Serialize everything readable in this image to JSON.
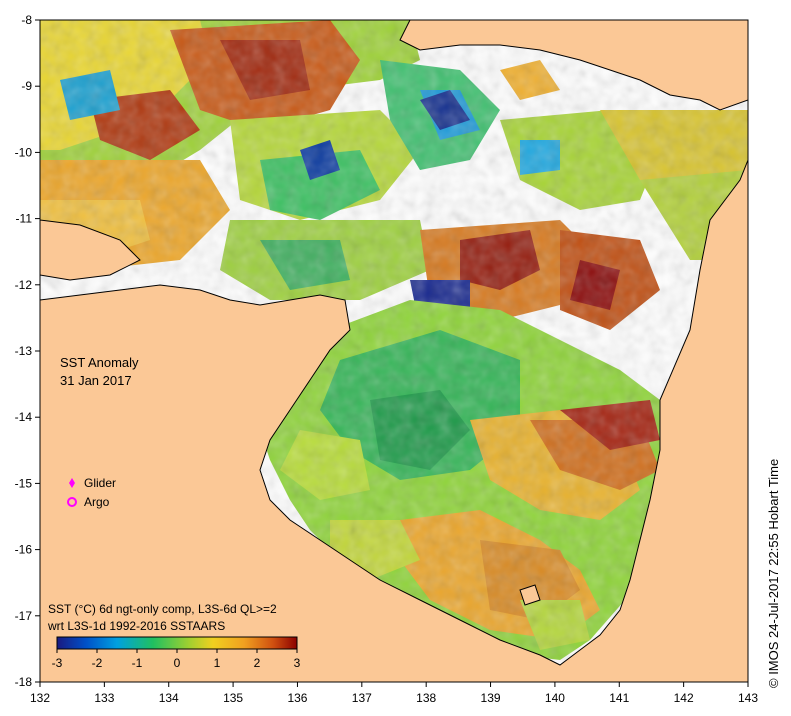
{
  "map": {
    "title": "SST Anomaly",
    "date": "31 Jan 2017",
    "x_ticks": [
      "132",
      "133",
      "134",
      "135",
      "136",
      "137",
      "138",
      "139",
      "140",
      "141",
      "142",
      "143"
    ],
    "y_ticks": [
      "-8",
      "-9",
      "-10",
      "-11",
      "-12",
      "-13",
      "-14",
      "-15",
      "-16",
      "-17",
      "-18"
    ],
    "legend": {
      "glider_label": "Glider",
      "argo_label": "Argo",
      "glider_color": "#ff00ff",
      "argo_color": "#ff00ff"
    },
    "product_line1": "SST (°C) 6d ngt-only comp, L3S-6d QL>=2",
    "product_line2": "wrt L3S-1d 1992-2016 SSTAARS",
    "colorbar": {
      "ticks": [
        "-3",
        "-2",
        "-1",
        "0",
        "1",
        "2",
        "3"
      ],
      "colors": [
        "#1a1a80",
        "#0050c8",
        "#00a0e0",
        "#20c060",
        "#a0d030",
        "#f0d020",
        "#f0a020",
        "#d05010",
        "#8b0000"
      ]
    },
    "credit": "© IMOS 24-Jul-2017 22:55 Hobart Time",
    "colors": {
      "land": "#fbc896",
      "nodata": "#ffffff",
      "coast": "#000000"
    }
  }
}
